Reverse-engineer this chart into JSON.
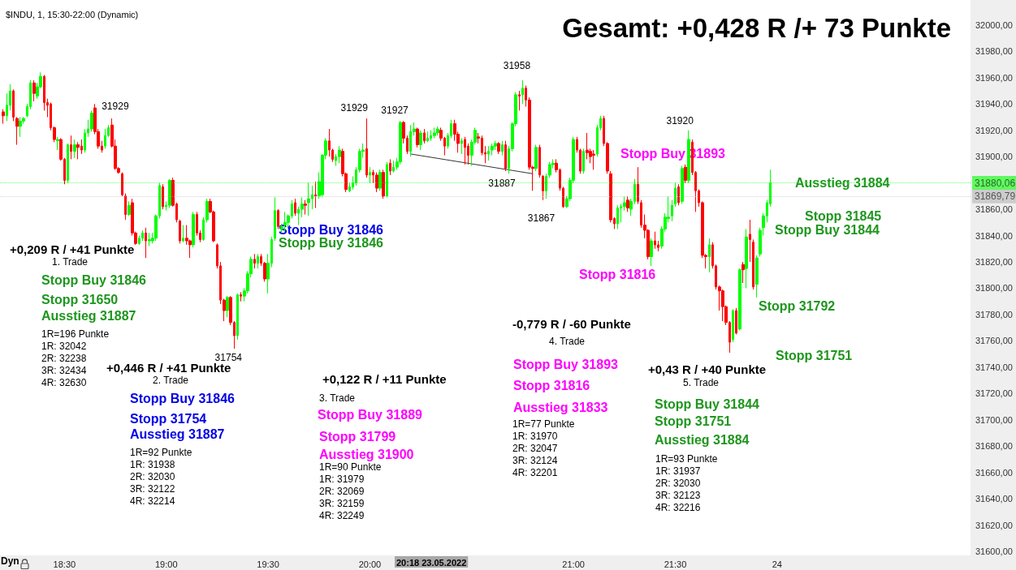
{
  "chart_data": {
    "type": "candlestick",
    "title": "Gesamt: +0,428 R /+ 73 Punkte",
    "subtitle": "$INDU, 1, 15:30-22:00 (Dynamic)",
    "colors": [
      "#00ff00",
      "#ff0000"
    ],
    "xlim": [
      "2022-05-23T18:11",
      "2022-05-23T22:57"
    ],
    "xticks": [
      {
        "value": "2022-05-23T18:30",
        "label": "18:30"
      },
      {
        "value": "2022-05-23T19:00",
        "label": "19:00"
      },
      {
        "value": "2022-05-23T19:30",
        "label": "19:30"
      },
      {
        "value": "2022-05-23T20:00",
        "label": "20:00"
      },
      {
        "value": "2022-05-23T21:00",
        "label": "21:00"
      },
      {
        "value": "2022-05-23T21:30",
        "label": "21:30"
      },
      {
        "value": "2022-05-23T22:00",
        "label": "24"
      }
    ],
    "ylim": [
      31597,
      32019
    ],
    "yticks": [
      {
        "value": 31600,
        "label": "31600,00"
      },
      {
        "value": 31620,
        "label": "31620,00"
      },
      {
        "value": 31640,
        "label": "31640,00"
      },
      {
        "value": 31660,
        "label": "31660,00"
      },
      {
        "value": 31680,
        "label": "31680,00"
      },
      {
        "value": 31700,
        "label": "31700,00"
      },
      {
        "value": 31720,
        "label": "31720,00"
      },
      {
        "value": 31740,
        "label": "31740,00"
      },
      {
        "value": 31760,
        "label": "31760,00"
      },
      {
        "value": 31780,
        "label": "31780,00"
      },
      {
        "value": 31800,
        "label": "31800,00"
      },
      {
        "value": 31820,
        "label": "31820,00"
      },
      {
        "value": 31840,
        "label": "31840,00"
      },
      {
        "value": 31860,
        "label": "31860,00"
      },
      {
        "value": 31900,
        "label": "31900,00"
      },
      {
        "value": 31920,
        "label": "31920,00"
      },
      {
        "value": 31940,
        "label": "31940,00"
      },
      {
        "value": 31960,
        "label": "31960,00"
      },
      {
        "value": 31980,
        "label": "31980,00"
      },
      {
        "value": 32000,
        "label": "32000,00"
      }
    ],
    "ref_lines": [
      {
        "axis": "y",
        "value": 31880.06,
        "label": "31880,06",
        "color": "#00ff00"
      },
      {
        "axis": "y",
        "value": 31869.79,
        "label": "31869,79",
        "color": "#b4b4b4"
      }
    ],
    "series": [
      {
        "type": "candlestick",
        "x": [
          "2022-05-23T18:12",
          "2022-05-23T18:13",
          "2022-05-23T18:14",
          "2022-05-23T18:15",
          "2022-05-23T18:16",
          "2022-05-23T18:17",
          "2022-05-23T18:18",
          "2022-05-23T18:19",
          "2022-05-23T18:20",
          "2022-05-23T18:21",
          "2022-05-23T18:22",
          "2022-05-23T18:23",
          "2022-05-23T18:24",
          "2022-05-23T18:25",
          "2022-05-23T18:26",
          "2022-05-23T18:27",
          "2022-05-23T18:28",
          "2022-05-23T18:29",
          "2022-05-23T18:30",
          "2022-05-23T18:31",
          "2022-05-23T18:32",
          "2022-05-23T18:33",
          "2022-05-23T18:34",
          "2022-05-23T18:35",
          "2022-05-23T18:36",
          "2022-05-23T18:37",
          "2022-05-23T18:38",
          "2022-05-23T18:39",
          "2022-05-23T18:40",
          "2022-05-23T18:41",
          "2022-05-23T18:42",
          "2022-05-23T18:43",
          "2022-05-23T18:44",
          "2022-05-23T18:45",
          "2022-05-23T18:46",
          "2022-05-23T18:47",
          "2022-05-23T18:48",
          "2022-05-23T18:49",
          "2022-05-23T18:50",
          "2022-05-23T18:51",
          "2022-05-23T18:52",
          "2022-05-23T18:53",
          "2022-05-23T18:54",
          "2022-05-23T18:55",
          "2022-05-23T18:56",
          "2022-05-23T18:57",
          "2022-05-23T18:58",
          "2022-05-23T18:59",
          "2022-05-23T19:00",
          "2022-05-23T19:01",
          "2022-05-23T19:02",
          "2022-05-23T19:03",
          "2022-05-23T19:04",
          "2022-05-23T19:05",
          "2022-05-23T19:06",
          "2022-05-23T19:07",
          "2022-05-23T19:08",
          "2022-05-23T19:09",
          "2022-05-23T19:10",
          "2022-05-23T19:11",
          "2022-05-23T19:12",
          "2022-05-23T19:13",
          "2022-05-23T19:14",
          "2022-05-23T19:15",
          "2022-05-23T19:16",
          "2022-05-23T19:17",
          "2022-05-23T19:18",
          "2022-05-23T19:19",
          "2022-05-23T19:20",
          "2022-05-23T19:21",
          "2022-05-23T19:22",
          "2022-05-23T19:23",
          "2022-05-23T19:24",
          "2022-05-23T19:25",
          "2022-05-23T19:26",
          "2022-05-23T19:27",
          "2022-05-23T19:28",
          "2022-05-23T19:29",
          "2022-05-23T19:30",
          "2022-05-23T19:31",
          "2022-05-23T19:32",
          "2022-05-23T19:33",
          "2022-05-23T19:34",
          "2022-05-23T19:35",
          "2022-05-23T19:36",
          "2022-05-23T19:37",
          "2022-05-23T19:38",
          "2022-05-23T19:39",
          "2022-05-23T19:40",
          "2022-05-23T19:41",
          "2022-05-23T19:42",
          "2022-05-23T19:43",
          "2022-05-23T19:44",
          "2022-05-23T19:45",
          "2022-05-23T19:46",
          "2022-05-23T19:47",
          "2022-05-23T19:48",
          "2022-05-23T19:49",
          "2022-05-23T19:50",
          "2022-05-23T19:51",
          "2022-05-23T19:52",
          "2022-05-23T19:53",
          "2022-05-23T19:54",
          "2022-05-23T19:55",
          "2022-05-23T19:56",
          "2022-05-23T19:57",
          "2022-05-23T19:58",
          "2022-05-23T19:59",
          "2022-05-23T20:00",
          "2022-05-23T20:01",
          "2022-05-23T20:02",
          "2022-05-23T20:03",
          "2022-05-23T20:04",
          "2022-05-23T20:05",
          "2022-05-23T20:06",
          "2022-05-23T20:07",
          "2022-05-23T20:08",
          "2022-05-23T20:09",
          "2022-05-23T20:10",
          "2022-05-23T20:11",
          "2022-05-23T20:12",
          "2022-05-23T20:13",
          "2022-05-23T20:14",
          "2022-05-23T20:15",
          "2022-05-23T20:16",
          "2022-05-23T20:17",
          "2022-05-23T20:18",
          "2022-05-23T20:19",
          "2022-05-23T20:20",
          "2022-05-23T20:21",
          "2022-05-23T20:22",
          "2022-05-23T20:23",
          "2022-05-23T20:24",
          "2022-05-23T20:25",
          "2022-05-23T20:26",
          "2022-05-23T20:27",
          "2022-05-23T20:28",
          "2022-05-23T20:29",
          "2022-05-23T20:30",
          "2022-05-23T20:31",
          "2022-05-23T20:32",
          "2022-05-23T20:33",
          "2022-05-23T20:34",
          "2022-05-23T20:35",
          "2022-05-23T20:36",
          "2022-05-23T20:37",
          "2022-05-23T20:38",
          "2022-05-23T20:39",
          "2022-05-23T20:40",
          "2022-05-23T20:41",
          "2022-05-23T20:42",
          "2022-05-23T20:43",
          "2022-05-23T20:44",
          "2022-05-23T20:45",
          "2022-05-23T20:46",
          "2022-05-23T20:47",
          "2022-05-23T20:48",
          "2022-05-23T20:49",
          "2022-05-23T20:50",
          "2022-05-23T20:51",
          "2022-05-23T20:52",
          "2022-05-23T20:53",
          "2022-05-23T20:54",
          "2022-05-23T20:55",
          "2022-05-23T20:56",
          "2022-05-23T20:57",
          "2022-05-23T20:58",
          "2022-05-23T20:59",
          "2022-05-23T21:00",
          "2022-05-23T21:01",
          "2022-05-23T21:02",
          "2022-05-23T21:03",
          "2022-05-23T21:04",
          "2022-05-23T21:05",
          "2022-05-23T21:06",
          "2022-05-23T21:07",
          "2022-05-23T21:08",
          "2022-05-23T21:09",
          "2022-05-23T21:10",
          "2022-05-23T21:11",
          "2022-05-23T21:12",
          "2022-05-23T21:13",
          "2022-05-23T21:14",
          "2022-05-23T21:15",
          "2022-05-23T21:16",
          "2022-05-23T21:17",
          "2022-05-23T21:18",
          "2022-05-23T21:19",
          "2022-05-23T21:20",
          "2022-05-23T21:21",
          "2022-05-23T21:22",
          "2022-05-23T21:23",
          "2022-05-23T21:24",
          "2022-05-23T21:25",
          "2022-05-23T21:26",
          "2022-05-23T21:27",
          "2022-05-23T21:28",
          "2022-05-23T21:29",
          "2022-05-23T21:30",
          "2022-05-23T21:31",
          "2022-05-23T21:32",
          "2022-05-23T21:33",
          "2022-05-23T21:34",
          "2022-05-23T21:35",
          "2022-05-23T21:36",
          "2022-05-23T21:37",
          "2022-05-23T21:38",
          "2022-05-23T21:39",
          "2022-05-23T21:40",
          "2022-05-23T21:41",
          "2022-05-23T21:42",
          "2022-05-23T21:43",
          "2022-05-23T21:44",
          "2022-05-23T21:45",
          "2022-05-23T21:46",
          "2022-05-23T21:47",
          "2022-05-23T21:48",
          "2022-05-23T21:49",
          "2022-05-23T21:50",
          "2022-05-23T21:51",
          "2022-05-23T21:52",
          "2022-05-23T21:53",
          "2022-05-23T21:54",
          "2022-05-23T21:55",
          "2022-05-23T21:56",
          "2022-05-23T21:57",
          "2022-05-23T21:58"
        ],
        "ohlc": [
          [
            31934,
            31936,
            31925,
            31931
          ],
          [
            31931,
            31948,
            31927,
            31939
          ],
          [
            31939,
            31955,
            31935,
            31950
          ],
          [
            31950,
            31951,
            31927,
            31930
          ],
          [
            31929,
            31930,
            31909,
            31923
          ],
          [
            31923,
            31930,
            31915,
            31927
          ],
          [
            31927,
            31930,
            31925,
            31929
          ],
          [
            31931,
            31940,
            31930,
            31938
          ],
          [
            31938,
            31958,
            31936,
            31956
          ],
          [
            31956,
            31958,
            31942,
            31948
          ],
          [
            31946,
            31956,
            31944,
            31953
          ],
          [
            31953,
            31964,
            31952,
            31961
          ],
          [
            31961,
            31962,
            31935,
            31941
          ],
          [
            31941,
            31944,
            31930,
            31939
          ],
          [
            31940,
            31941,
            31920,
            31922
          ],
          [
            31922,
            31923,
            31911,
            31913
          ],
          [
            31912,
            31915,
            31905,
            31913
          ],
          [
            31913,
            31914,
            31897,
            31898
          ],
          [
            31898,
            31899,
            31879,
            31882
          ],
          [
            31882,
            31910,
            31880,
            31909
          ],
          [
            31909,
            31916,
            31898,
            31904
          ],
          [
            31904,
            31913,
            31899,
            31909
          ],
          [
            31909,
            31911,
            31898,
            31907
          ],
          [
            31908,
            31913,
            31902,
            31905
          ],
          [
            31905,
            31921,
            31903,
            31918
          ],
          [
            31918,
            31928,
            31915,
            31921
          ],
          [
            31921,
            31935,
            31919,
            31933
          ],
          [
            31937,
            31940,
            31917,
            31919
          ],
          [
            31919,
            31921,
            31906,
            31908
          ],
          [
            31908,
            31912,
            31903,
            31905
          ],
          [
            31908,
            31921,
            31906,
            31916
          ],
          [
            31916,
            31924,
            31915,
            31922
          ],
          [
            31924,
            31929,
            31907,
            31908
          ],
          [
            31908,
            31913,
            31890,
            31891
          ],
          [
            31891,
            31892,
            31887,
            31888
          ],
          [
            31887,
            31888,
            31870,
            31871
          ],
          [
            31870,
            31872,
            31852,
            31856
          ],
          [
            31856,
            31866,
            31855,
            31863
          ],
          [
            31865,
            31868,
            31840,
            31842
          ],
          [
            31842,
            31843,
            31833,
            31834
          ],
          [
            31834,
            31840,
            31833,
            31838
          ],
          [
            31838,
            31844,
            31836,
            31842
          ],
          [
            31842,
            31846,
            31823,
            31836
          ],
          [
            31836,
            31842,
            31832,
            31837
          ],
          [
            31836,
            31842,
            31834,
            31838
          ],
          [
            31838,
            31856,
            31836,
            31855
          ],
          [
            31855,
            31880,
            31853,
            31878
          ],
          [
            31877,
            31879,
            31860,
            31862
          ],
          [
            31862,
            31866,
            31859,
            31863
          ],
          [
            31863,
            31883,
            31861,
            31882
          ],
          [
            31882,
            31884,
            31862,
            31863
          ],
          [
            31864,
            31865,
            31850,
            31852
          ],
          [
            31851,
            31852,
            31834,
            31836
          ],
          [
            31836,
            31848,
            31835,
            31838
          ],
          [
            31838,
            31848,
            31833,
            31836
          ],
          [
            31836,
            31837,
            31823,
            31833
          ],
          [
            31833,
            31858,
            31831,
            31856
          ],
          [
            31856,
            31858,
            31840,
            31842
          ],
          [
            31842,
            31844,
            31835,
            31837
          ],
          [
            31837,
            31854,
            31836,
            31852
          ],
          [
            31852,
            31868,
            31850,
            31866
          ],
          [
            31866,
            31868,
            31857,
            31858
          ],
          [
            31858,
            31859,
            31835,
            31836
          ],
          [
            31833,
            31834,
            31815,
            31817
          ],
          [
            31817,
            31820,
            31788,
            31791
          ],
          [
            31791,
            31792,
            31775,
            31783
          ],
          [
            31783,
            31794,
            31778,
            31793
          ],
          [
            31793,
            31794,
            31772,
            31774
          ],
          [
            31774,
            31775,
            31754,
            31764
          ],
          [
            31764,
            31796,
            31761,
            31795
          ],
          [
            31795,
            31797,
            31790,
            31794
          ],
          [
            31794,
            31800,
            31790,
            31798
          ],
          [
            31798,
            31813,
            31796,
            31811
          ],
          [
            31811,
            31824,
            31808,
            31822
          ],
          [
            31822,
            31826,
            31815,
            31819
          ],
          [
            31819,
            31826,
            31815,
            31824
          ],
          [
            31824,
            31826,
            31817,
            31819
          ],
          [
            31819,
            31820,
            31805,
            31807
          ],
          [
            31807,
            31826,
            31796,
            31819
          ],
          [
            31819,
            31839,
            31816,
            31837
          ],
          [
            31838,
            31869,
            31836,
            31859
          ],
          [
            31859,
            31860,
            31845,
            31847
          ],
          [
            31845,
            31849,
            31842,
            31847
          ],
          [
            31848,
            31858,
            31843,
            31850
          ],
          [
            31850,
            31856,
            31846,
            31855
          ],
          [
            31855,
            31867,
            31853,
            31864
          ],
          [
            31865,
            31868,
            31855,
            31857
          ],
          [
            31857,
            31862,
            31848,
            31860
          ],
          [
            31860,
            31869,
            31854,
            31864
          ],
          [
            31864,
            31867,
            31856,
            31863
          ],
          [
            31865,
            31880,
            31855,
            31868
          ],
          [
            31868,
            31878,
            31860,
            31871
          ],
          [
            31871,
            31881,
            31861,
            31870
          ],
          [
            31870,
            31888,
            31868,
            31881
          ],
          [
            31871,
            31902,
            31869,
            31901
          ],
          [
            31901,
            31914,
            31898,
            31912
          ],
          [
            31912,
            31921,
            31900,
            31905
          ],
          [
            31905,
            31906,
            31896,
            31898
          ],
          [
            31897,
            31902,
            31893,
            31900
          ],
          [
            31900,
            31908,
            31895,
            31905
          ],
          [
            31904,
            31906,
            31885,
            31887
          ],
          [
            31887,
            31888,
            31873,
            31875
          ],
          [
            31874,
            31880,
            31873,
            31877
          ],
          [
            31877,
            31885,
            31875,
            31880
          ],
          [
            31880,
            31892,
            31878,
            31890
          ],
          [
            31890,
            31906,
            31888,
            31904
          ],
          [
            31904,
            31910,
            31899,
            31905
          ],
          [
            31906,
            31929,
            31884,
            31886
          ],
          [
            31886,
            31892,
            31880,
            31888
          ],
          [
            31888,
            31890,
            31880,
            31886
          ],
          [
            31886,
            31888,
            31873,
            31876
          ],
          [
            31876,
            31890,
            31874,
            31888
          ],
          [
            31888,
            31890,
            31868,
            31870
          ],
          [
            31870,
            31896,
            31869,
            31894
          ],
          [
            31895,
            31898,
            31886,
            31889
          ],
          [
            31889,
            31897,
            31888,
            31892
          ],
          [
            31892,
            31899,
            31890,
            31896
          ],
          [
            31896,
            31927,
            31894,
            31926
          ],
          [
            31926,
            31927,
            31910,
            31914
          ],
          [
            31914,
            31916,
            31902,
            31904
          ],
          [
            31904,
            31924,
            31900,
            31919
          ],
          [
            31919,
            31926,
            31916,
            31921
          ],
          [
            31921,
            31922,
            31907,
            31909
          ],
          [
            31909,
            31920,
            31905,
            31918
          ],
          [
            31918,
            31921,
            31910,
            31912
          ],
          [
            31912,
            31919,
            31911,
            31914
          ],
          [
            31914,
            31920,
            31912,
            31916
          ],
          [
            31916,
            31922,
            31914,
            31918
          ],
          [
            31918,
            31923,
            31916,
            31921
          ],
          [
            31920,
            31922,
            31912,
            31914
          ],
          [
            31914,
            31915,
            31901,
            31908
          ],
          [
            31908,
            31918,
            31906,
            31916
          ],
          [
            31916,
            31928,
            31914,
            31925
          ],
          [
            31925,
            31928,
            31912,
            31917
          ],
          [
            31917,
            31919,
            31903,
            31910
          ],
          [
            31910,
            31914,
            31902,
            31912
          ],
          [
            31913,
            31915,
            31894,
            31907
          ],
          [
            31908,
            31910,
            31894,
            31901
          ],
          [
            31901,
            31913,
            31893,
            31911
          ],
          [
            31911,
            31922,
            31909,
            31920
          ],
          [
            31915,
            31918,
            31910,
            31914
          ],
          [
            31914,
            31916,
            31901,
            31903
          ],
          [
            31903,
            31908,
            31895,
            31902
          ],
          [
            31902,
            31908,
            31897,
            31904
          ],
          [
            31905,
            31910,
            31901,
            31908
          ],
          [
            31908,
            31912,
            31905,
            31910
          ],
          [
            31910,
            31911,
            31902,
            31904
          ],
          [
            31904,
            31912,
            31901,
            31909
          ],
          [
            31909,
            31912,
            31889,
            31891
          ],
          [
            31891,
            31908,
            31887,
            31906
          ],
          [
            31906,
            31926,
            31904,
            31925
          ],
          [
            31925,
            31949,
            31923,
            31947
          ],
          [
            31947,
            31950,
            31935,
            31946
          ],
          [
            31947,
            31958,
            31940,
            31952
          ],
          [
            31952,
            31954,
            31938,
            31943
          ],
          [
            31943,
            31945,
            31890,
            31892
          ],
          [
            31892,
            31893,
            31874,
            31891
          ],
          [
            31891,
            31909,
            31889,
            31907
          ],
          [
            31907,
            31909,
            31884,
            31886
          ],
          [
            31885,
            31886,
            31867,
            31874
          ],
          [
            31874,
            31887,
            31868,
            31885
          ],
          [
            31886,
            31896,
            31884,
            31894
          ],
          [
            31894,
            31898,
            31891,
            31895
          ],
          [
            31895,
            31898,
            31888,
            31890
          ],
          [
            31890,
            31891,
            31874,
            31876
          ],
          [
            31876,
            31877,
            31861,
            31862
          ],
          [
            31862,
            31870,
            31861,
            31868
          ],
          [
            31868,
            31884,
            31866,
            31882
          ],
          [
            31882,
            31915,
            31880,
            31913
          ],
          [
            31913,
            31915,
            31903,
            31905
          ],
          [
            31905,
            31906,
            31887,
            31889
          ],
          [
            31889,
            31906,
            31887,
            31904
          ],
          [
            31905,
            31918,
            31898,
            31903
          ],
          [
            31904,
            31906,
            31895,
            31900
          ],
          [
            31902,
            31905,
            31890,
            31901
          ],
          [
            31902,
            31924,
            31900,
            31922
          ],
          [
            31922,
            31931,
            31920,
            31929
          ],
          [
            31929,
            31931,
            31908,
            31910
          ],
          [
            31910,
            31911,
            31887,
            31889
          ],
          [
            31887,
            31889,
            31850,
            31852
          ],
          [
            31853,
            31854,
            31845,
            31849
          ],
          [
            31849,
            31863,
            31845,
            31861
          ],
          [
            31861,
            31864,
            31850,
            31862
          ],
          [
            31862,
            31870,
            31859,
            31865
          ],
          [
            31867,
            31870,
            31858,
            31861
          ],
          [
            31860,
            31868,
            31855,
            31866
          ],
          [
            31866,
            31883,
            31864,
            31879
          ],
          [
            31879,
            31892,
            31864,
            31866
          ],
          [
            31865,
            31867,
            31846,
            31848
          ],
          [
            31848,
            31856,
            31838,
            31844
          ],
          [
            31844,
            31845,
            31822,
            31824
          ],
          [
            31824,
            31838,
            31817,
            31836
          ],
          [
            31836,
            31843,
            31830,
            31833
          ],
          [
            31833,
            31836,
            31828,
            31831
          ],
          [
            31832,
            31847,
            31830,
            31845
          ],
          [
            31845,
            31857,
            31843,
            31854
          ],
          [
            31853,
            31870,
            31850,
            31854
          ],
          [
            31855,
            31867,
            31851,
            31863
          ],
          [
            31864,
            31880,
            31862,
            31876
          ],
          [
            31877,
            31879,
            31863,
            31865
          ],
          [
            31866,
            31893,
            31864,
            31891
          ],
          [
            31892,
            31894,
            31880,
            31882
          ],
          [
            31882,
            31920,
            31880,
            31913
          ],
          [
            31911,
            31913,
            31886,
            31888
          ],
          [
            31888,
            31889,
            31858,
            31874
          ],
          [
            31874,
            31875,
            31862,
            31865
          ],
          [
            31865,
            31866,
            31823,
            31825
          ],
          [
            31825,
            31826,
            31815,
            31824
          ],
          [
            31824,
            31838,
            31812,
            31833
          ],
          [
            31833,
            31835,
            31815,
            31817
          ],
          [
            31817,
            31818,
            31799,
            31801
          ],
          [
            31801,
            31802,
            31783,
            31798
          ],
          [
            31798,
            31799,
            31775,
            31786
          ],
          [
            31786,
            31787,
            31772,
            31774
          ],
          [
            31774,
            31775,
            31751,
            31759
          ],
          [
            31761,
            31784,
            31759,
            31783
          ],
          [
            31783,
            31785,
            31765,
            31766
          ],
          [
            31769,
            31815,
            31768,
            31814
          ],
          [
            31818,
            31820,
            31804,
            31814
          ],
          [
            31815,
            31845,
            31800,
            31839
          ],
          [
            31841,
            31852,
            31820,
            31837
          ],
          [
            31835,
            31837,
            31799,
            31801
          ],
          [
            31803,
            31825,
            31793,
            31823
          ],
          [
            31826,
            31846,
            31824,
            31844
          ],
          [
            31846,
            31857,
            31840,
            31855
          ],
          [
            31855,
            31867,
            31850,
            31865
          ],
          [
            31864,
            31890,
            31862,
            31880
          ]
        ]
      },
      {
        "type": "line",
        "x": [
          "2022-05-23T20:12",
          "2022-05-23T20:48"
        ],
        "values": [
          31902,
          31887
        ],
        "color": "#333333"
      }
    ],
    "annotations": [
      "+0,209 R / +41 Punkte",
      "1. Trade",
      "Stopp Buy 31846",
      "Stopp 31650",
      "Ausstieg 31887",
      "1R=196 Punkte",
      "1R: 32042",
      "2R: 32238",
      "3R: 32434",
      "4R: 32630",
      "+0,446 R / +41 Punkte",
      "2. Trade",
      "Stopp Buy 31846",
      "Stopp 31754",
      "Ausstieg 31887",
      "1R=92 Punkte",
      "1R: 31938",
      "2R: 32030",
      "3R: 32122",
      "4R: 32214",
      "+0,122 R / +11 Punkte",
      "3. Trade",
      "Stopp Buy 31889",
      "Stopp 31799",
      "Ausstieg 31900",
      "1R=90 Punkte",
      "1R: 31979",
      "2R: 32069",
      "3R: 32159",
      "4R: 32249",
      "-0,779 R / -60 Punkte",
      "4. Trade",
      "Stopp Buy 31893",
      "Stopp 31816",
      "Ausstieg 31833",
      "1R=77 Punkte",
      "1R: 31970",
      "2R: 32047",
      "3R: 32124",
      "4R: 32201",
      "+0,43 R / +40 Punkte",
      "5. Trade",
      "Stopp Buy 31844",
      "Stopp 31751",
      "Ausstieg 31884",
      "1R=93 Punkte",
      "1R: 31937",
      "2R: 32030",
      "3R: 32123",
      "4R: 32216",
      "Stopp Buy 31846",
      "Stopp Buy 31846",
      "Stopp Buy 31893",
      "Stopp 31816",
      "Ausstieg 31884",
      "Stopp 31845",
      "Stopp Buy 31844",
      "Stopp 31792",
      "Stopp 31751",
      "20:18 23.05.2022",
      "Dyn",
      {
        "text": "31929",
        "x": "2022-05-23T18:44",
        "y": 31929
      },
      {
        "text": "31754",
        "x": "2022-05-23T19:20",
        "y": 31754
      },
      {
        "text": "31929",
        "x": "2022-05-23T19:59",
        "y": 31929
      },
      {
        "text": "31927",
        "x": "2022-05-23T20:09",
        "y": 31927
      },
      {
        "text": "31958",
        "x": "2022-05-23T20:45",
        "y": 31958
      },
      {
        "text": "31887",
        "x": "2022-05-23T20:48",
        "y": 31887
      },
      {
        "text": "31867",
        "x": "2022-05-23T20:51",
        "y": 31867
      },
      {
        "text": "31920",
        "x": "2022-05-23T21:34",
        "y": 31920
      }
    ]
  }
}
